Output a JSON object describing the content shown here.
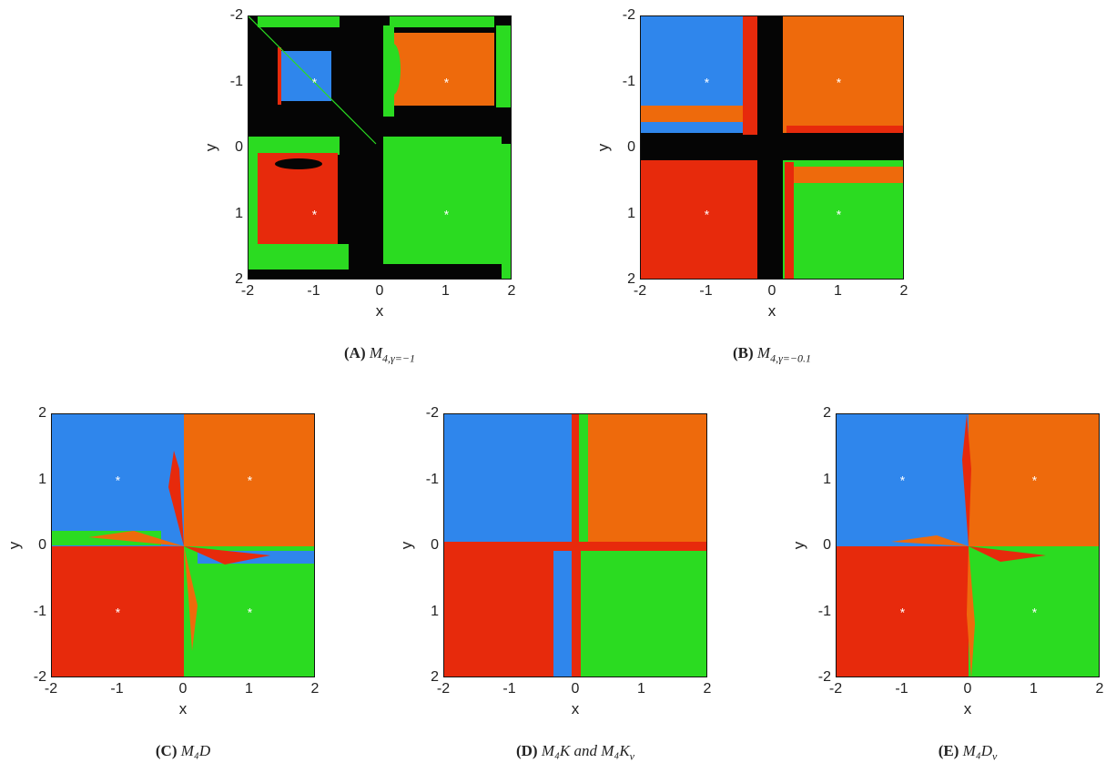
{
  "colors": {
    "blue": "#2f86ec",
    "orange": "#ee6a0c",
    "red": "#e72a0c",
    "green": "#2bdb21",
    "black": "#050505",
    "marker": "#ffffff"
  },
  "chart_data": [
    {
      "type": "heatmap",
      "id": "A",
      "caption_label": "(A)",
      "caption_text": "M_{4,γ=−1}",
      "xlabel": "x",
      "ylabel": "y",
      "xlim": [
        -2,
        2
      ],
      "ylim": [
        -2,
        2
      ],
      "x_ticks": [
        "-2",
        "-1",
        "0",
        "1",
        "2"
      ],
      "y_ticks": [
        "-2",
        "-1",
        "0",
        "1",
        "2"
      ],
      "markers": [
        [
          -1,
          -1
        ],
        [
          1,
          -1
        ],
        [
          -1,
          1
        ],
        [
          1,
          1
        ]
      ],
      "basins": [
        "blue",
        "orange",
        "red",
        "green"
      ],
      "nonconvergent_color": "black"
    },
    {
      "type": "heatmap",
      "id": "B",
      "caption_label": "(B)",
      "caption_text": "M_{4,γ=−0.1}",
      "xlabel": "x",
      "ylabel": "y",
      "xlim": [
        -2,
        2
      ],
      "ylim": [
        -2,
        2
      ],
      "x_ticks": [
        "-2",
        "-1",
        "0",
        "1",
        "2"
      ],
      "y_ticks": [
        "-2",
        "-1",
        "0",
        "1",
        "2"
      ],
      "markers": [
        [
          -1,
          -1
        ],
        [
          1,
          -1
        ],
        [
          -1,
          1
        ],
        [
          1,
          1
        ]
      ],
      "basins": [
        "blue",
        "orange",
        "red",
        "green"
      ],
      "nonconvergent_color": "black"
    },
    {
      "type": "heatmap",
      "id": "C",
      "caption_label": "(C)",
      "caption_text": "M₄D",
      "xlabel": "x",
      "ylabel": "y",
      "xlim": [
        -2,
        2
      ],
      "ylim": [
        -2,
        2
      ],
      "x_ticks": [
        "-2",
        "-1",
        "0",
        "1",
        "2"
      ],
      "y_ticks": [
        "2",
        "1",
        "0",
        "-1",
        "-2"
      ],
      "markers": [
        [
          -1,
          1
        ],
        [
          1,
          1
        ],
        [
          -1,
          -1
        ],
        [
          1,
          -1
        ]
      ],
      "basins": [
        "blue",
        "orange",
        "red",
        "green"
      ]
    },
    {
      "type": "heatmap",
      "id": "D",
      "caption_label": "(D)",
      "caption_text": "M₄K and M₄K_v",
      "xlabel": "x",
      "ylabel": "y",
      "xlim": [
        -2,
        2
      ],
      "ylim": [
        -2,
        2
      ],
      "x_ticks": [
        "-2",
        "-1",
        "0",
        "1",
        "2"
      ],
      "y_ticks": [
        "-2",
        "-1",
        "0",
        "1",
        "2"
      ],
      "markers": [],
      "basins": [
        "blue",
        "orange",
        "red",
        "green"
      ]
    },
    {
      "type": "heatmap",
      "id": "E",
      "caption_label": "(E)",
      "caption_text": "M₄D_v",
      "xlabel": "x",
      "ylabel": "y",
      "xlim": [
        -2,
        2
      ],
      "ylim": [
        -2,
        2
      ],
      "x_ticks": [
        "-2",
        "-1",
        "0",
        "1",
        "2"
      ],
      "y_ticks": [
        "2",
        "1",
        "0",
        "-1",
        "-2"
      ],
      "markers": [
        [
          -1,
          1
        ],
        [
          1,
          1
        ],
        [
          -1,
          -1
        ],
        [
          1,
          -1
        ]
      ],
      "basins": [
        "blue",
        "orange",
        "red",
        "green"
      ]
    }
  ]
}
